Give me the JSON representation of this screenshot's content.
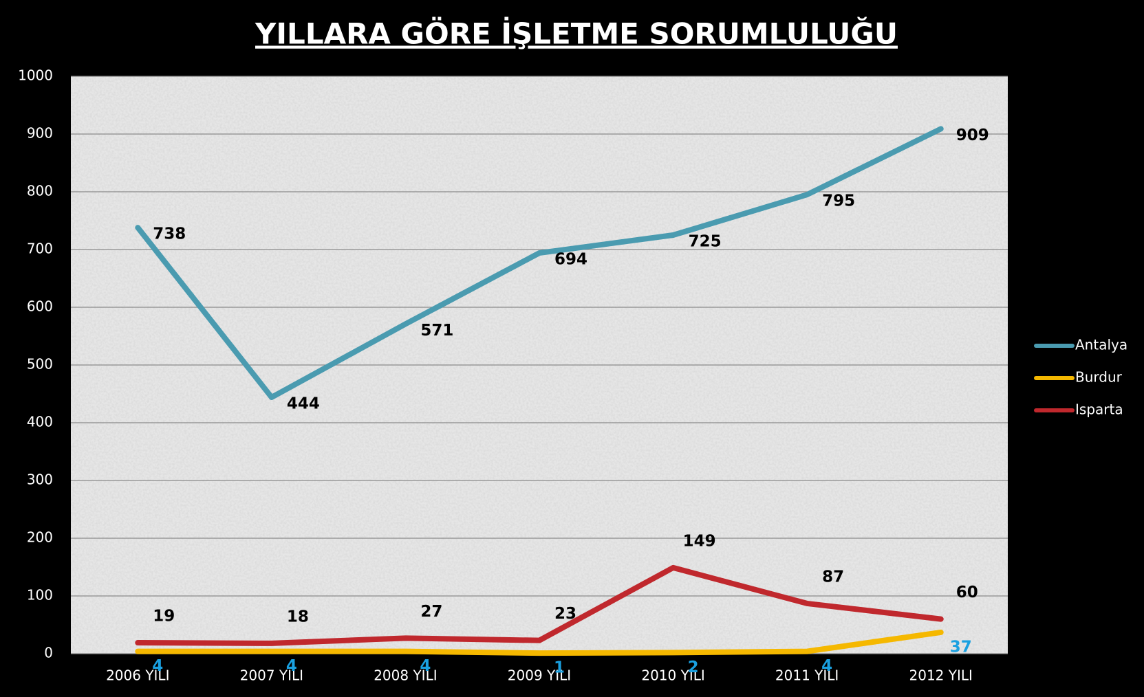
{
  "chart_data": {
    "type": "line",
    "title": "YILLARA GÖRE İŞLETME SORUMLULUĞU",
    "categories": [
      "2006 YILI",
      "2007 YILI",
      "2008 YILI",
      "2009 YILI",
      "2010 YILI",
      "2011 YILI",
      "2012 YILI"
    ],
    "series": [
      {
        "name": "Antalya",
        "color": "#4a9bb0",
        "label_color": "#000000",
        "values": [
          738,
          444,
          571,
          694,
          725,
          795,
          909
        ]
      },
      {
        "name": "Burdur",
        "color": "#f5b800",
        "label_color": "#1aa0e0",
        "values": [
          4,
          4,
          4,
          1,
          2,
          4,
          37
        ]
      },
      {
        "name": "Isparta",
        "color": "#c0282d",
        "label_color": "#000000",
        "values": [
          19,
          18,
          27,
          23,
          149,
          87,
          60
        ]
      }
    ],
    "ylim": [
      0,
      1000
    ],
    "yticks": [
      0,
      100,
      200,
      300,
      400,
      500,
      600,
      700,
      800,
      900,
      1000
    ],
    "grid": true,
    "legend": "right"
  }
}
